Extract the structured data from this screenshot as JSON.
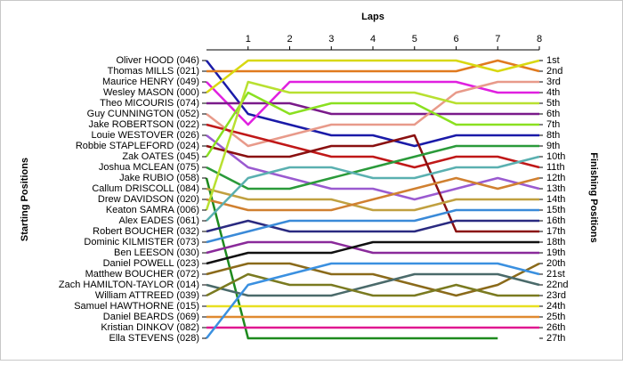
{
  "chart_data": {
    "type": "bump",
    "xlabel": "Laps",
    "ylabel": "Starting Positions",
    "y2label": "Finishing Positions",
    "x": [
      0,
      1,
      2,
      3,
      4,
      5,
      6,
      7,
      8
    ],
    "xlim": [
      0,
      8
    ],
    "xticks": [
      1,
      2,
      3,
      4,
      5,
      6,
      7,
      8
    ],
    "ylim": [
      1,
      27
    ],
    "y_inverted": true,
    "y2lim": [
      1,
      27
    ],
    "y2ticks": [
      {
        "value": 1,
        "label": "1st"
      },
      {
        "value": 2,
        "label": "2nd"
      },
      {
        "value": 3,
        "label": "3rd"
      },
      {
        "value": 4,
        "label": "4th"
      },
      {
        "value": 5,
        "label": "5th"
      },
      {
        "value": 6,
        "label": "6th"
      },
      {
        "value": 7,
        "label": "7th"
      },
      {
        "value": 8,
        "label": "8th"
      },
      {
        "value": 9,
        "label": "9th"
      },
      {
        "value": 10,
        "label": "10th"
      },
      {
        "value": 11,
        "label": "11th"
      },
      {
        "value": 12,
        "label": "12th"
      },
      {
        "value": 13,
        "label": "13th"
      },
      {
        "value": 14,
        "label": "14th"
      },
      {
        "value": 15,
        "label": "15th"
      },
      {
        "value": 16,
        "label": "16th"
      },
      {
        "value": 17,
        "label": "17th"
      },
      {
        "value": 18,
        "label": "18th"
      },
      {
        "value": 19,
        "label": "19th"
      },
      {
        "value": 20,
        "label": "20th"
      },
      {
        "value": 21,
        "label": "21st"
      },
      {
        "value": 22,
        "label": "22nd"
      },
      {
        "value": 23,
        "label": "23rd"
      },
      {
        "value": 24,
        "label": "24th"
      },
      {
        "value": 25,
        "label": "25th"
      },
      {
        "value": 26,
        "label": "26th"
      },
      {
        "value": 27,
        "label": "27th"
      }
    ],
    "series": [
      {
        "name": "Oliver HOOD (046)",
        "color": "#1a1aa8",
        "values": [
          1,
          6,
          7,
          8,
          8,
          9,
          8,
          8,
          8
        ]
      },
      {
        "name": "Thomas MILLS (021)",
        "color": "#e07a1f",
        "values": [
          2,
          2,
          2,
          2,
          2,
          2,
          2,
          1,
          2
        ]
      },
      {
        "name": "Maurice HENRY (049)",
        "color": "#e020e0",
        "values": [
          3,
          7,
          3,
          3,
          3,
          3,
          3,
          4,
          4
        ]
      },
      {
        "name": "Wesley MASON (000)",
        "color": "#d8d810",
        "values": [
          4,
          1,
          1,
          1,
          1,
          1,
          1,
          2,
          1
        ]
      },
      {
        "name": "Theo MICOURIS (074)",
        "color": "#7a1a8a",
        "values": [
          5,
          5,
          5,
          6,
          6,
          6,
          6,
          6,
          6
        ]
      },
      {
        "name": "Guy CUNNINGTON (052)",
        "color": "#e89a8a",
        "values": [
          6,
          9,
          8,
          7,
          7,
          7,
          4,
          3,
          3
        ]
      },
      {
        "name": "Jake ROBERTSON (022)",
        "color": "#c01818",
        "values": [
          7,
          8,
          9,
          10,
          10,
          11,
          10,
          10,
          11
        ]
      },
      {
        "name": "Louie WESTOVER (026)",
        "color": "#9a5ad0",
        "values": [
          8,
          11,
          12,
          13,
          13,
          14,
          13,
          12,
          13
        ]
      },
      {
        "name": "Robbie STAPLEFORD (024)",
        "color": "#8a1010",
        "values": [
          9,
          10,
          10,
          9,
          9,
          8,
          17,
          17,
          17
        ]
      },
      {
        "name": "Zak OATES (045)",
        "color": "#8ae020",
        "values": [
          10,
          4,
          6,
          5,
          5,
          5,
          7,
          7,
          7
        ]
      },
      {
        "name": "Joshua MCLEAN (075)",
        "color": "#2a9a3a",
        "values": [
          11,
          13,
          13,
          12,
          11,
          10,
          9,
          9,
          9
        ]
      },
      {
        "name": "Jake RUBIO (058)",
        "color": "#1e8a1e",
        "values": [
          12,
          27,
          27,
          27,
          27,
          27,
          27,
          27,
          null
        ]
      },
      {
        "name": "Callum DRISCOLL (084)",
        "color": "#c0a040",
        "values": [
          13,
          14,
          14,
          14,
          15,
          15,
          14,
          14,
          14
        ]
      },
      {
        "name": "Drew DAVIDSON (020)",
        "color": "#d08030",
        "values": [
          14,
          15,
          15,
          15,
          14,
          13,
          12,
          13,
          12
        ]
      },
      {
        "name": "Keaton SAMRA (006)",
        "color": "#b8e030",
        "values": [
          15,
          3,
          4,
          4,
          4,
          4,
          5,
          5,
          5
        ]
      },
      {
        "name": "Alex EADES (061)",
        "color": "#5ab0b0",
        "values": [
          16,
          12,
          11,
          11,
          12,
          12,
          11,
          11,
          10
        ]
      },
      {
        "name": "Robert BOUCHER (032)",
        "color": "#2a2a80",
        "values": [
          17,
          16,
          17,
          17,
          17,
          17,
          16,
          16,
          16
        ]
      },
      {
        "name": "Dominic KILMISTER (073)",
        "color": "#3a8ad8",
        "values": [
          18,
          17,
          16,
          16,
          16,
          16,
          15,
          15,
          15
        ]
      },
      {
        "name": "Ben LEESON (030)",
        "color": "#8a2a9a",
        "values": [
          19,
          18,
          18,
          18,
          19,
          19,
          19,
          19,
          19
        ]
      },
      {
        "name": "Daniel POWELL (023)",
        "color": "#101010",
        "values": [
          20,
          19,
          19,
          19,
          18,
          18,
          18,
          18,
          18
        ]
      },
      {
        "name": "Matthew BOUCHER (072)",
        "color": "#8a6a1a",
        "values": [
          21,
          20,
          20,
          21,
          21,
          22,
          23,
          22,
          20
        ]
      },
      {
        "name": "Zach HAMILTON-TAYLOR (014)",
        "color": "#4a6a6a",
        "values": [
          22,
          23,
          23,
          23,
          22,
          21,
          21,
          21,
          22
        ]
      },
      {
        "name": "William ATTREED (039)",
        "color": "#7a7a20",
        "values": [
          23,
          21,
          22,
          22,
          23,
          23,
          22,
          23,
          23
        ]
      },
      {
        "name": "Samuel HAWTHORNE (015)",
        "color": "#e8e020",
        "values": [
          24,
          24,
          24,
          24,
          24,
          24,
          24,
          24,
          24
        ]
      },
      {
        "name": "Daniel BEARDS (069)",
        "color": "#e08a30",
        "values": [
          25,
          25,
          25,
          25,
          25,
          25,
          25,
          25,
          25
        ]
      },
      {
        "name": "Kristian DINKOV (082)",
        "color": "#e01890",
        "values": [
          26,
          26,
          26,
          26,
          26,
          26,
          26,
          26,
          26
        ]
      },
      {
        "name": "Ella STEVENS (028)",
        "color": "#3a90e0",
        "values": [
          27,
          22,
          21,
          20,
          20,
          20,
          20,
          20,
          21
        ]
      }
    ]
  }
}
